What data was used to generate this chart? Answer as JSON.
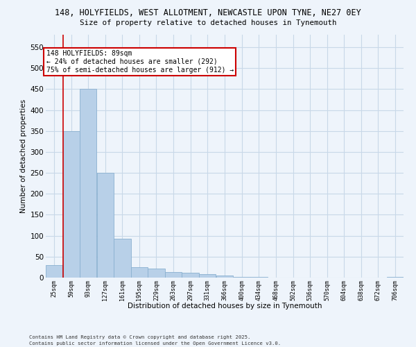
{
  "title_line1": "148, HOLYFIELDS, WEST ALLOTMENT, NEWCASTLE UPON TYNE, NE27 0EY",
  "title_line2": "Size of property relative to detached houses in Tynemouth",
  "xlabel": "Distribution of detached houses by size in Tynemouth",
  "ylabel": "Number of detached properties",
  "bar_color": "#b8d0e8",
  "bar_edge_color": "#8ab0d0",
  "grid_color": "#c8d8e8",
  "background_color": "#eef4fb",
  "annotation_line1": "148 HOLYFIELDS: 89sqm",
  "annotation_line2": "← 24% of detached houses are smaller (292)",
  "annotation_line3": "75% of semi-detached houses are larger (912) →",
  "vline_color": "#cc0000",
  "vline_x_index": 1,
  "categories": [
    "25sqm",
    "59sqm",
    "93sqm",
    "127sqm",
    "161sqm",
    "195sqm",
    "229sqm",
    "263sqm",
    "297sqm",
    "331sqm",
    "366sqm",
    "400sqm",
    "434sqm",
    "468sqm",
    "502sqm",
    "536sqm",
    "570sqm",
    "604sqm",
    "638sqm",
    "672sqm",
    "706sqm"
  ],
  "bin_left_edges": [
    25,
    59,
    93,
    127,
    161,
    195,
    229,
    263,
    297,
    331,
    366,
    400,
    434,
    468,
    502,
    536,
    570,
    604,
    638,
    672,
    706
  ],
  "bin_width": 34,
  "values": [
    30,
    350,
    450,
    250,
    93,
    25,
    22,
    14,
    11,
    8,
    5,
    2,
    1,
    0,
    0,
    0,
    0,
    0,
    0,
    0,
    2
  ],
  "ylim": [
    0,
    580
  ],
  "yticks": [
    0,
    50,
    100,
    150,
    200,
    250,
    300,
    350,
    400,
    450,
    500,
    550
  ],
  "footer_line1": "Contains HM Land Registry data © Crown copyright and database right 2025.",
  "footer_line2": "Contains public sector information licensed under the Open Government Licence v3.0."
}
